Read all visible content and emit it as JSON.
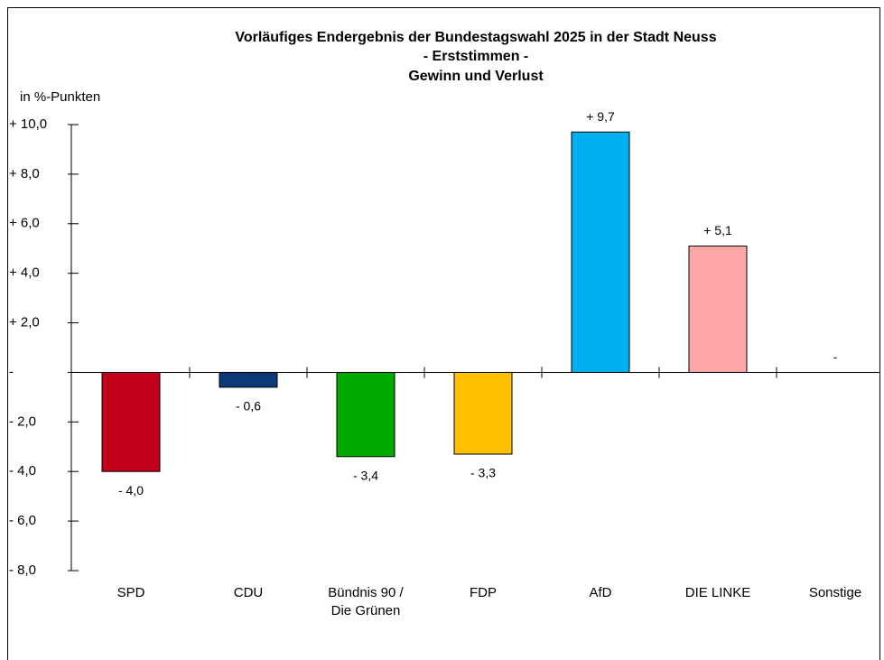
{
  "chart_data": {
    "type": "bar",
    "title": "Vorläufiges Endergebnis der Bundestagswahl 2025 in der Stadt Neuss",
    "subtitle": [
      "- Erststimmen -",
      "Gewinn und Verlust"
    ],
    "y_label": "in %-Punkten",
    "categories": [
      "SPD",
      "CDU",
      "Bündnis 90 /\nDie Grünen",
      "FDP",
      "AfD",
      "DIE LINKE",
      "Sonstige"
    ],
    "values": [
      -4.0,
      -0.6,
      -3.4,
      -3.3,
      9.7,
      5.1,
      0
    ],
    "value_labels": [
      "- 4,0",
      "- 0,6",
      "- 3,4",
      "- 3,3",
      "+ 9,7",
      "+ 5,1",
      "-"
    ],
    "colors": [
      "#c00018",
      "#0c3a78",
      "#00a800",
      "#ffc000",
      "#00b0f0",
      "#ffa6a6",
      "#999999"
    ],
    "ylim": [
      -8,
      10
    ],
    "yticks": [
      {
        "value": 10,
        "label": "+ 10,0"
      },
      {
        "value": 8,
        "label": "+ 8,0"
      },
      {
        "value": 6,
        "label": "+ 6,0"
      },
      {
        "value": 4,
        "label": "+ 4,0"
      },
      {
        "value": 2,
        "label": "+ 2,0"
      },
      {
        "value": 0,
        "label": "-"
      },
      {
        "value": -2,
        "label": "- 2,0"
      },
      {
        "value": -4,
        "label": "- 4,0"
      },
      {
        "value": -6,
        "label": "- 6,0"
      },
      {
        "value": -8,
        "label": "- 8,0"
      }
    ],
    "grid": false
  }
}
